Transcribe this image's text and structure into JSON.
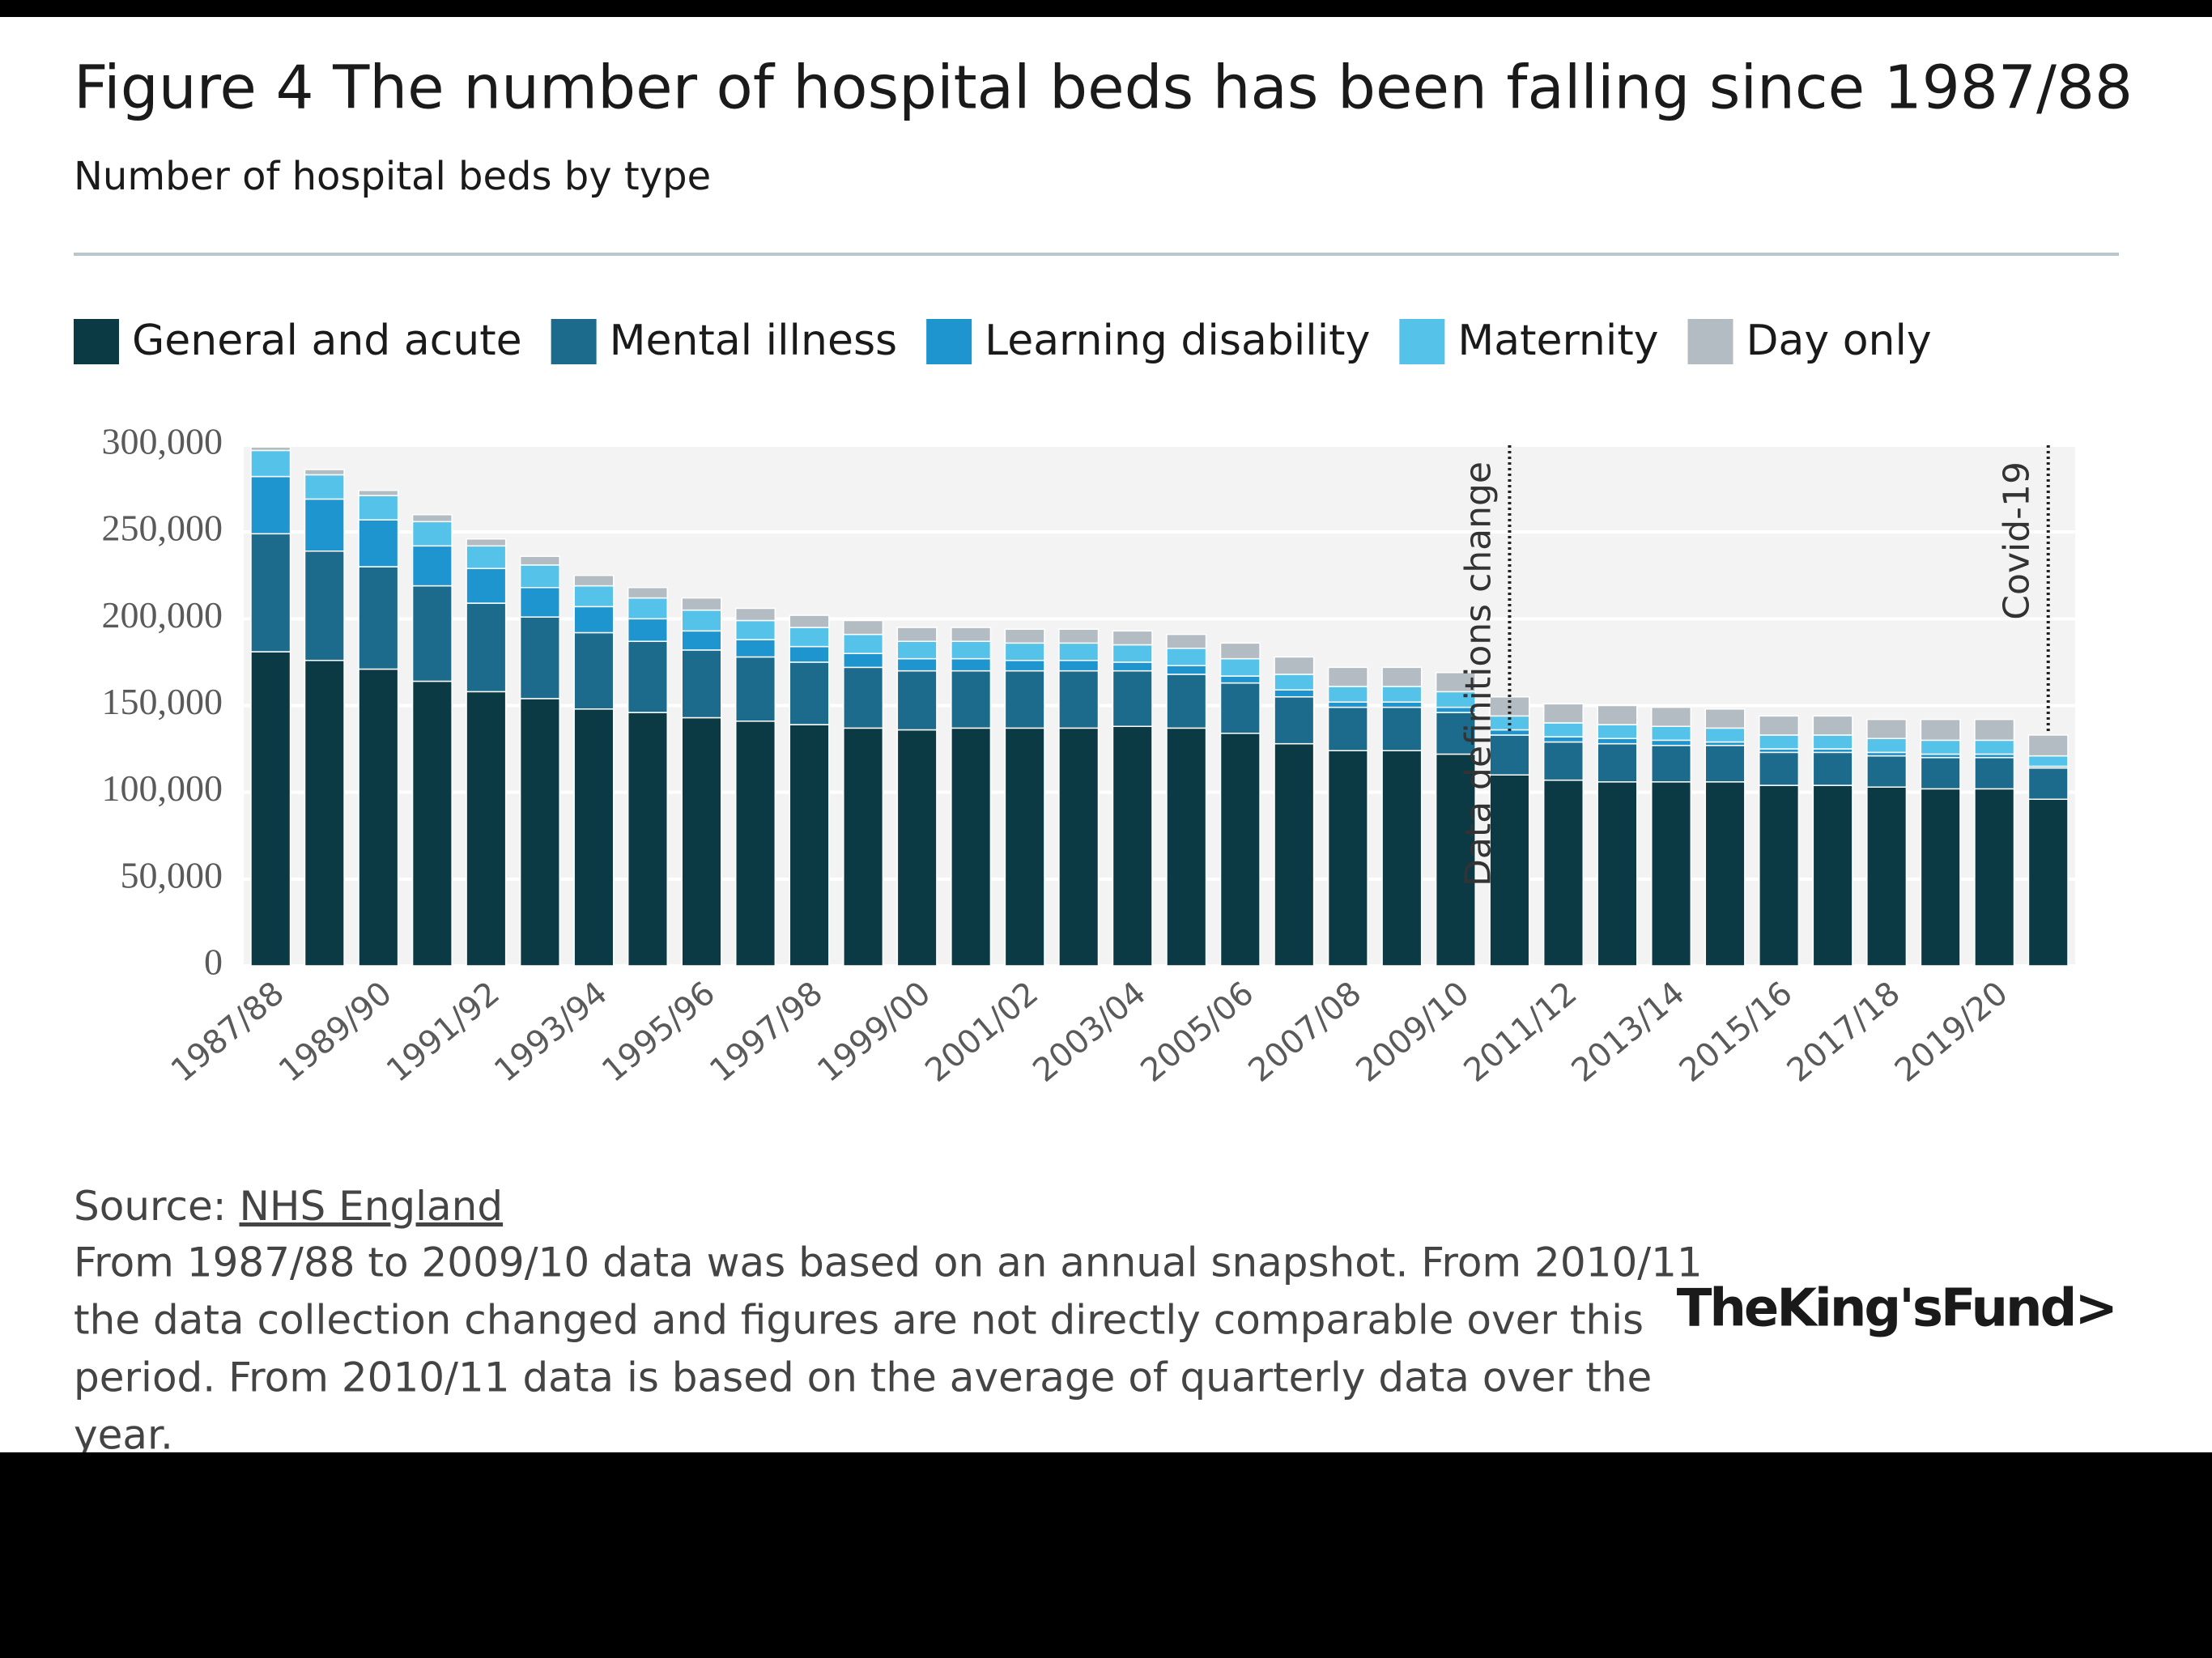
{
  "chart_data": {
    "type": "stacked-bar",
    "title": "Figure 4 The number of hospital beds has been falling since 1987/88",
    "subtitle": "Number of hospital beds by type",
    "categories": [
      "1987/88",
      null,
      "1989/90",
      null,
      "1991/92",
      null,
      "1993/94",
      null,
      "1995/96",
      null,
      "1997/98",
      null,
      "1999/00",
      null,
      "2001/02",
      null,
      "2003/04",
      null,
      "2005/06",
      null,
      "2007/08",
      null,
      "2009/10",
      null,
      "2011/12",
      null,
      "2013/14",
      null,
      "2015/16",
      null,
      "2017/18",
      null,
      "2019/20",
      null
    ],
    "series": [
      {
        "name": "General and acute",
        "color": "#0b3a45",
        "values": [
          181000,
          176000,
          171000,
          164000,
          158000,
          154000,
          148000,
          146000,
          143000,
          141000,
          139000,
          137000,
          136000,
          137000,
          137000,
          137000,
          138000,
          137000,
          134000,
          128000,
          124000,
          124000,
          122000,
          110000,
          107000,
          106000,
          106000,
          106000,
          104000,
          104000,
          103000,
          102000,
          102000,
          96000
        ]
      },
      {
        "name": "Mental illness",
        "color": "#1c6a8c",
        "values": [
          68000,
          63000,
          59000,
          55000,
          51000,
          47000,
          44000,
          41000,
          39000,
          37000,
          36000,
          35000,
          34000,
          33000,
          33000,
          33000,
          32000,
          31000,
          29000,
          27000,
          25000,
          25000,
          24000,
          23000,
          22000,
          22000,
          21000,
          21000,
          19000,
          19000,
          18000,
          18000,
          18000,
          18000
        ]
      },
      {
        "name": "Learning disability",
        "color": "#1f95cf",
        "values": [
          33000,
          30000,
          27000,
          23000,
          20000,
          17000,
          15000,
          13000,
          11000,
          10000,
          9000,
          8000,
          7000,
          7000,
          6000,
          6000,
          5000,
          5000,
          4000,
          4000,
          3000,
          3000,
          3000,
          3000,
          3000,
          3000,
          3000,
          2000,
          2000,
          2000,
          2000,
          2000,
          2000,
          1000
        ]
      },
      {
        "name": "Maternity",
        "color": "#55c2ea",
        "values": [
          15000,
          14000,
          14000,
          14000,
          13000,
          13000,
          12000,
          12000,
          12000,
          11000,
          11000,
          11000,
          10000,
          10000,
          10000,
          10000,
          10000,
          10000,
          10000,
          9000,
          9000,
          9000,
          9000,
          8000,
          8000,
          8000,
          8000,
          8000,
          8000,
          8000,
          8000,
          8000,
          8000,
          6000
        ]
      },
      {
        "name": "Day only",
        "color": "#b4bcc3",
        "values": [
          2000,
          3000,
          3000,
          4000,
          4000,
          5000,
          6000,
          6000,
          7000,
          7000,
          7000,
          8000,
          8000,
          8000,
          8000,
          8000,
          8000,
          8000,
          9000,
          10000,
          11000,
          11000,
          11000,
          11000,
          11000,
          11000,
          11000,
          11000,
          11000,
          11000,
          11000,
          12000,
          12000,
          12000
        ]
      }
    ],
    "ylim": [
      0,
      300000
    ],
    "yticks": [
      0,
      {
        "value": 50000,
        "label": "50,000"
      },
      {
        "value": 100000,
        "label": "100,000"
      },
      {
        "value": 150000,
        "label": "150,000"
      },
      {
        "value": 200000,
        "label": "200,000"
      },
      {
        "value": 250000,
        "label": "250,000"
      },
      {
        "value": 300000,
        "label": "300,000"
      }
    ],
    "grid": true,
    "annotations": [
      "Data definitions change",
      "Covid-19"
    ],
    "source_label": "Source:",
    "source": "NHS England",
    "note": [
      "From 1987/88 to 2009/10 data was based on an annual snapshot. From 2010/11",
      "the data collection changed and figures are not directly comparable over this",
      "period. From 2010/11 data is based on the average of quarterly data over the",
      "year."
    ],
    "brand": "TheKing'sFund>"
  }
}
